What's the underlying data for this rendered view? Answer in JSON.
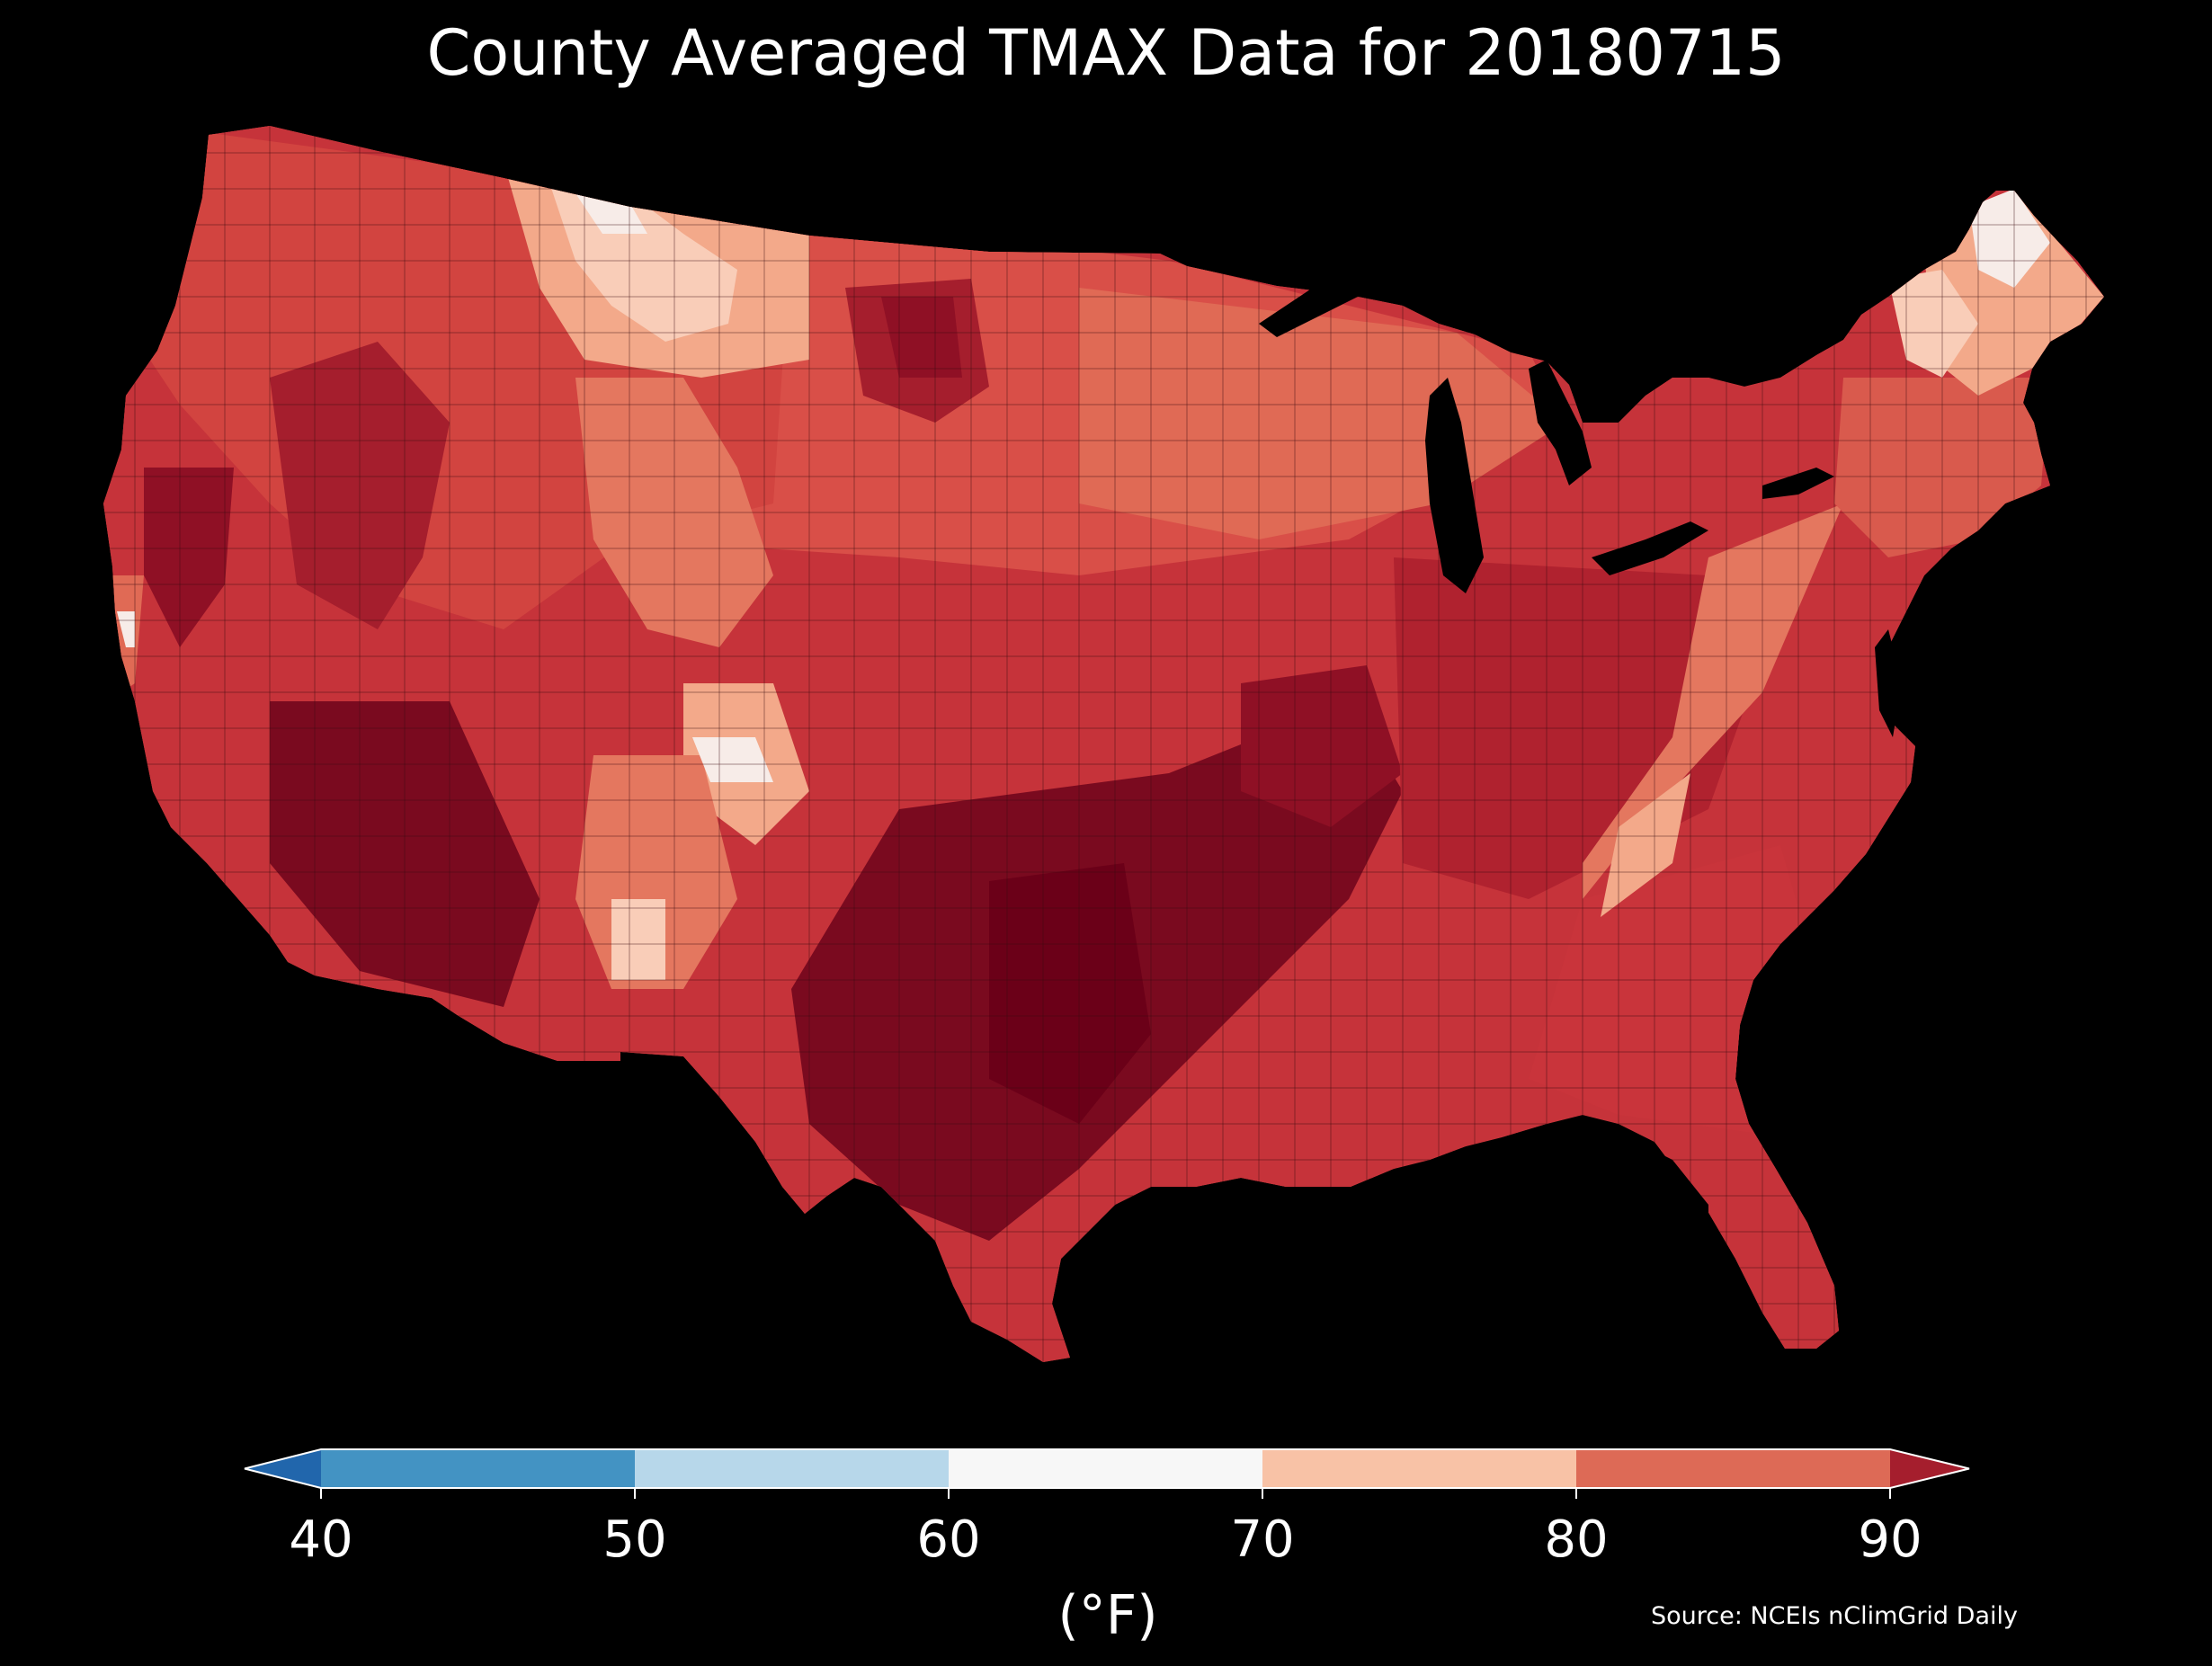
{
  "title": "County Averaged TMAX Data for 20180715",
  "source": "Source: NCEIs nClimGrid Daily",
  "colorbar": {
    "units": "(°F)",
    "ticks": [
      "40",
      "50",
      "60",
      "70",
      "80",
      "90"
    ],
    "bins": [
      {
        "range": "below 40",
        "color": "#2166ac"
      },
      {
        "range": "40-50",
        "color": "#4393c3"
      },
      {
        "range": "50-60",
        "color": "#b7d7ea"
      },
      {
        "range": "60-70",
        "color": "#f7f7f7"
      },
      {
        "range": "70-80",
        "color": "#f8c2a6"
      },
      {
        "range": "80-90",
        "color": "#dd6a56"
      },
      {
        "range": "above 90",
        "color": "#a51e2d"
      }
    ]
  },
  "palette": {
    "very_hot": "#6b0018",
    "hot": "#9a1428",
    "warm_hot": "#c02a35",
    "upper_warm": "#d64c46",
    "mid_warm": "#e4775f",
    "mild": "#f3a98a",
    "cool": "#f9cdb8",
    "near_white": "#f7ece8",
    "water": "#000000"
  }
}
